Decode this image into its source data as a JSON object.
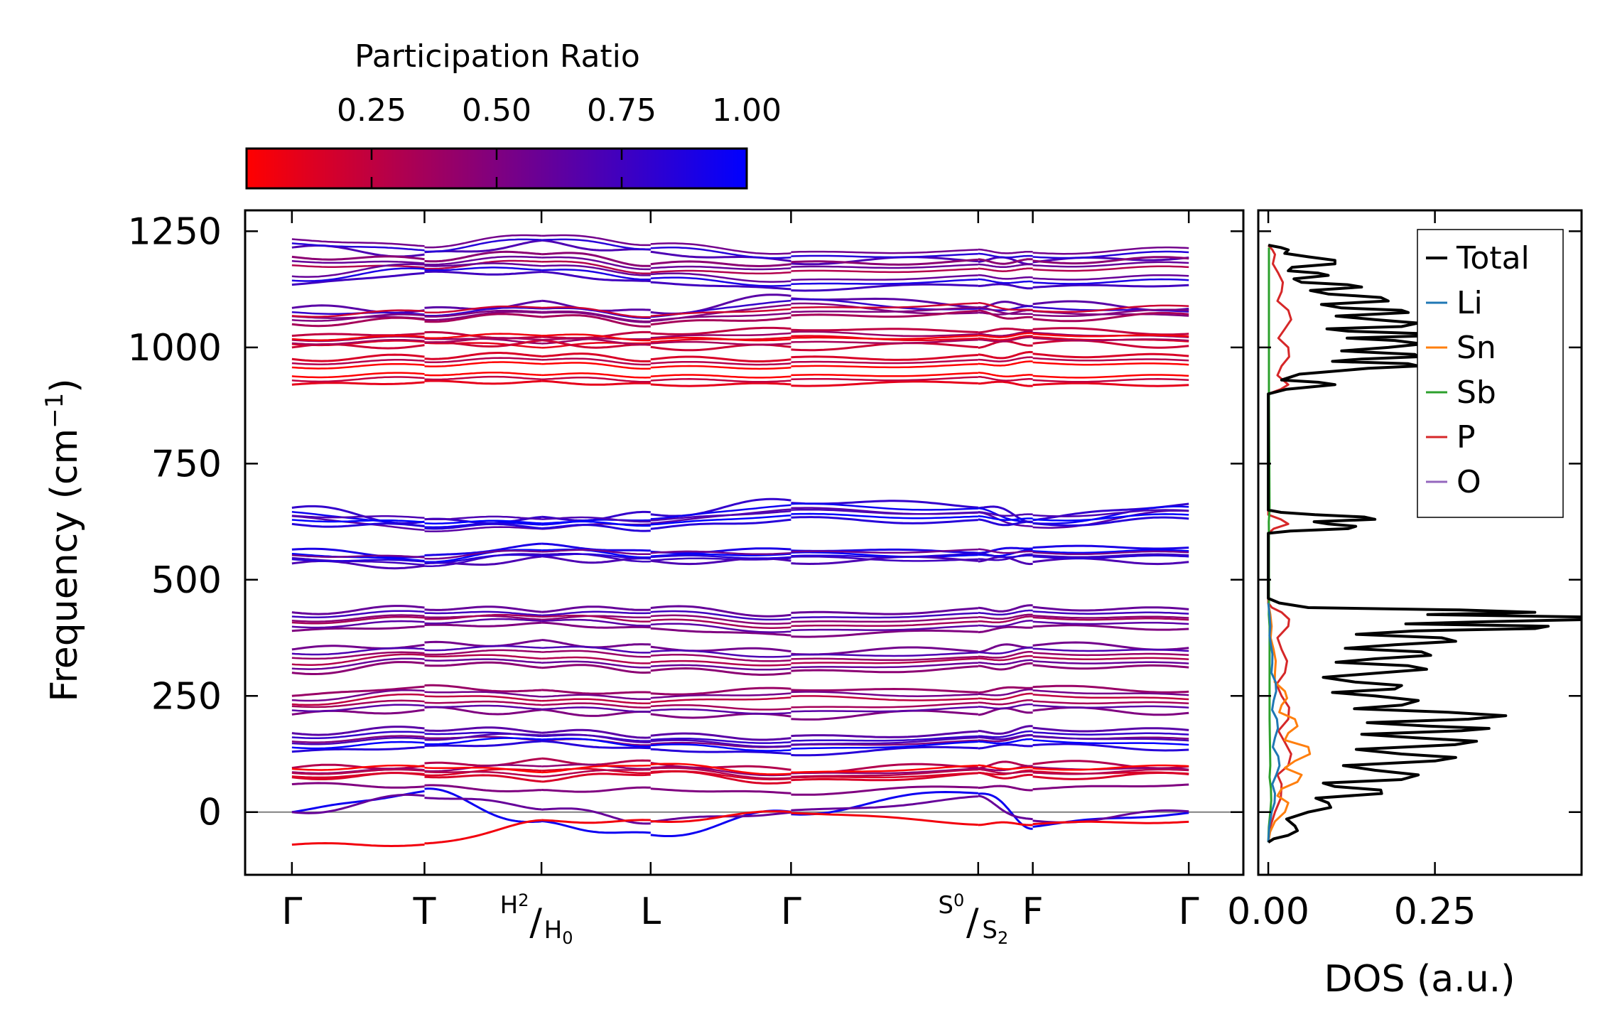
{
  "colorbar": {
    "title": "Participation Ratio",
    "ticks": [
      0.25,
      0.5,
      0.75,
      1.0
    ],
    "tick_labels": [
      "0.25",
      "0.50",
      "0.75",
      "1.00"
    ],
    "range": [
      0.0,
      1.0
    ],
    "color_low": "#ff0000",
    "color_high": "#0000ff"
  },
  "chart_data": [
    {
      "type": "line",
      "title": "Phonon band structure",
      "ylabel": "Frequency (cm",
      "ylabel_sup": "−1",
      "ylabel_close": ")",
      "ylim": [
        -135,
        1295
      ],
      "yticks": [
        0,
        250,
        500,
        750,
        1000,
        1250
      ],
      "ytick_labels": [
        "0",
        "250",
        "500",
        "750",
        "1000",
        "1250"
      ],
      "xlim": [
        -0.3,
        6.1
      ],
      "kpoints": [
        {
          "x": 0,
          "label": "Γ"
        },
        {
          "x": 0.85,
          "label": "T"
        },
        {
          "x": 1.6,
          "label_top": "H",
          "sub_top": "2",
          "label_bottom": "H",
          "sub_bottom": "0"
        },
        {
          "x": 2.3,
          "label": "L"
        },
        {
          "x": 3.2,
          "label": "Γ"
        },
        {
          "x": 4.4,
          "label_top": "S",
          "sub_top": "0",
          "label_bottom": "S",
          "sub_bottom": "2"
        },
        {
          "x": 4.75,
          "label": "F"
        },
        {
          "x": 5.75,
          "label": "Γ"
        }
      ],
      "segments": [
        [
          0,
          0.85
        ],
        [
          0.85,
          2.3
        ],
        [
          2.3,
          3.2
        ],
        [
          3.2,
          4.75
        ],
        [
          4.75,
          5.75
        ]
      ],
      "zero_line": 0,
      "bands_sampled": [
        [
          1215,
          1200,
          1225,
          1205,
          1185,
          1190,
          1185,
          1195
        ],
        [
          1195,
          1190,
          1205,
          1180,
          1180,
          1185,
          1185,
          1190
        ],
        [
          1135,
          1160,
          1160,
          1140,
          1125,
          1135,
          1130,
          1135
        ],
        [
          1085,
          1080,
          1095,
          1075,
          1110,
          1090,
          1095,
          1085
        ],
        [
          1050,
          1060,
          1070,
          1050,
          1065,
          1075,
          1060,
          1070
        ],
        [
          1025,
          1030,
          1020,
          1030,
          1040,
          1035,
          1040,
          1030
        ],
        [
          1000,
          1005,
          1010,
          1000,
          1000,
          1005,
          1010,
          1005
        ],
        [
          975,
          980,
          985,
          975,
          975,
          980,
          985,
          980
        ],
        [
          920,
          925,
          925,
          920,
          920,
          925,
          920,
          920
        ],
        [
          655,
          625,
          630,
          640,
          670,
          660,
          630,
          665
        ],
        [
          620,
          615,
          615,
          610,
          630,
          625,
          620,
          630
        ],
        [
          565,
          550,
          575,
          560,
          565,
          560,
          570,
          570
        ],
        [
          535,
          530,
          545,
          540,
          540,
          545,
          540,
          540
        ],
        [
          430,
          440,
          435,
          440,
          425,
          435,
          440,
          435
        ],
        [
          390,
          400,
          405,
          395,
          380,
          390,
          400,
          395
        ],
        [
          350,
          360,
          365,
          355,
          345,
          350,
          360,
          355
        ],
        [
          300,
          320,
          315,
          305,
          300,
          310,
          315,
          310
        ],
        [
          250,
          270,
          260,
          255,
          265,
          260,
          270,
          260
        ],
        [
          210,
          220,
          215,
          210,
          205,
          215,
          220,
          215
        ],
        [
          170,
          180,
          175,
          165,
          160,
          170,
          180,
          175
        ],
        [
          130,
          140,
          150,
          135,
          125,
          140,
          145,
          135
        ],
        [
          95,
          100,
          110,
          105,
          90,
          100,
          105,
          100
        ],
        [
          75,
          80,
          70,
          85,
          65,
          80,
          75,
          80
        ],
        [
          60,
          55,
          45,
          50,
          40,
          55,
          50,
          60
        ],
        [
          0,
          45,
          -25,
          -50,
          0,
          45,
          -30,
          0
        ],
        [
          0,
          35,
          10,
          -20,
          0,
          30,
          -20,
          0
        ],
        [
          -70,
          -70,
          -20,
          -20,
          0,
          -25,
          -25,
          -20
        ]
      ],
      "band_participation": [
        0.7,
        0.45,
        0.75,
        0.65,
        0.35,
        0.25,
        0.2,
        0.15,
        0.1,
        0.8,
        0.85,
        0.9,
        0.7,
        0.6,
        0.5,
        0.55,
        0.45,
        0.4,
        0.5,
        0.65,
        0.85,
        0.3,
        0.15,
        0.5,
        0.95,
        0.6,
        0.05
      ]
    },
    {
      "type": "line",
      "xlabel": "DOS (a.u.)",
      "xlim": [
        -0.015,
        0.47
      ],
      "xticks": [
        0.0,
        0.25
      ],
      "xtick_labels": [
        "0.00",
        "0.25"
      ],
      "ylim": [
        -135,
        1295
      ],
      "legend_position": "top-right",
      "series": [
        {
          "name": "Total",
          "color": "#000000",
          "freq": [
            -65,
            -50,
            -30,
            0,
            20,
            40,
            55,
            70,
            90,
            110,
            125,
            145,
            160,
            175,
            185,
            200,
            215,
            230,
            250,
            265,
            280,
            300,
            315,
            330,
            345,
            360,
            375,
            390,
            400,
            410,
            420,
            430,
            440,
            460,
            600,
            610,
            620,
            630,
            640,
            650,
            900,
            920,
            930,
            955,
            965,
            975,
            985,
            1000,
            1015,
            1025,
            1035,
            1045,
            1060,
            1075,
            1085,
            1100,
            1115,
            1130,
            1140,
            1155,
            1165,
            1180,
            1195,
            1210,
            1220
          ],
          "value": [
            0.0,
            0.03,
            0.04,
            0.06,
            0.09,
            0.17,
            0.1,
            0.2,
            0.16,
            0.25,
            0.2,
            0.28,
            0.22,
            0.29,
            0.24,
            0.3,
            0.27,
            0.2,
            0.16,
            0.19,
            0.13,
            0.17,
            0.21,
            0.16,
            0.23,
            0.19,
            0.26,
            0.22,
            0.42,
            0.33,
            0.47,
            0.4,
            0.06,
            0.0,
            0.0,
            0.12,
            0.09,
            0.16,
            0.07,
            0.0,
            0.0,
            0.1,
            0.02,
            0.15,
            0.21,
            0.14,
            0.22,
            0.18,
            0.19,
            0.24,
            0.12,
            0.2,
            0.16,
            0.21,
            0.11,
            0.18,
            0.09,
            0.14,
            0.05,
            0.09,
            0.03,
            0.1,
            0.06,
            0.03,
            0.0
          ]
        },
        {
          "name": "Li",
          "color": "#1f77b4",
          "freq": [
            -65,
            0,
            40,
            80,
            120,
            160,
            200,
            240,
            280,
            320,
            360,
            400,
            450
          ],
          "value": [
            0.0,
            0.005,
            0.01,
            0.012,
            0.015,
            0.01,
            0.013,
            0.008,
            0.011,
            0.006,
            0.004,
            0.003,
            0.0
          ]
        },
        {
          "name": "Sn",
          "color": "#ff7f0e",
          "freq": [
            -65,
            -20,
            20,
            50,
            80,
            110,
            140,
            170,
            200,
            230,
            260,
            300,
            350,
            400,
            450
          ],
          "value": [
            0.0,
            0.01,
            0.03,
            0.02,
            0.05,
            0.04,
            0.06,
            0.03,
            0.04,
            0.02,
            0.025,
            0.01,
            0.008,
            0.005,
            0.0
          ]
        },
        {
          "name": "Sb",
          "color": "#2ca02c",
          "freq": [
            -65,
            0,
            50,
            100,
            200,
            300,
            400,
            450,
            600,
            650,
            900,
            1000,
            1100,
            1215
          ],
          "value": [
            0.0,
            0.003,
            0.004,
            0.003,
            0.002,
            0.002,
            0.002,
            0.001,
            0.001,
            0.002,
            0.001,
            0.001,
            0.001,
            0.001
          ]
        },
        {
          "name": "P",
          "color": "#d62728",
          "freq": [
            -65,
            0,
            60,
            100,
            150,
            200,
            250,
            300,
            350,
            400,
            430,
            450,
            600,
            620,
            640,
            900,
            920,
            960,
            1000,
            1040,
            1080,
            1120,
            1160,
            1200,
            1220
          ],
          "value": [
            0.0,
            0.01,
            0.02,
            0.03,
            0.025,
            0.03,
            0.02,
            0.025,
            0.02,
            0.03,
            0.02,
            0.0,
            0.0,
            0.03,
            0.0,
            0.0,
            0.03,
            0.02,
            0.03,
            0.025,
            0.03,
            0.02,
            0.015,
            0.01,
            0.0
          ]
        },
        {
          "name": "O",
          "color": "#9467bd",
          "freq": [
            -65,
            0,
            40,
            80,
            110,
            150,
            175,
            210,
            250,
            280,
            310,
            340,
            370,
            395,
            410,
            425,
            440,
            460,
            600,
            610,
            625,
            635,
            650,
            900,
            920,
            955,
            970,
            990,
            1010,
            1030,
            1050,
            1070,
            1090,
            1110,
            1130,
            1150,
            1170,
            1190,
            1210,
            1220
          ],
          "value": [
            0.0,
            0.01,
            0.03,
            0.05,
            0.1,
            0.13,
            0.07,
            0.11,
            0.08,
            0.12,
            0.1,
            0.15,
            0.12,
            0.2,
            0.28,
            0.22,
            0.04,
            0.0,
            0.0,
            0.09,
            0.06,
            0.12,
            0.0,
            0.0,
            0.08,
            0.12,
            0.18,
            0.11,
            0.17,
            0.14,
            0.18,
            0.1,
            0.15,
            0.07,
            0.11,
            0.04,
            0.06,
            0.03,
            0.02,
            0.0
          ]
        }
      ]
    }
  ]
}
